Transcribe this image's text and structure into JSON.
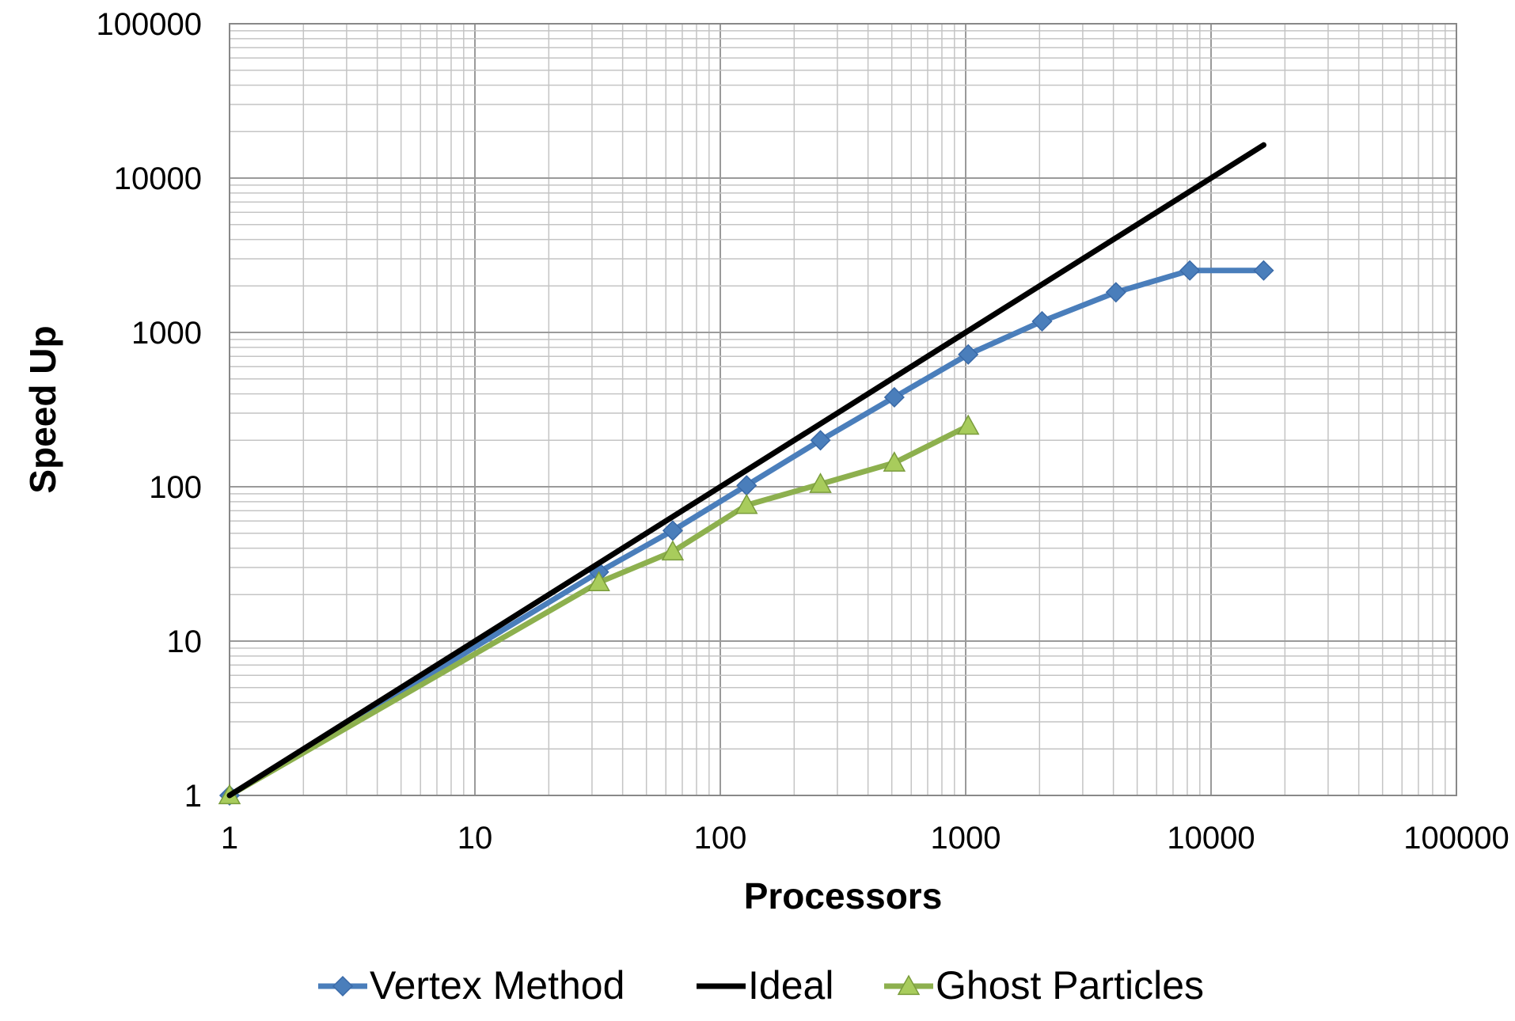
{
  "chart_data": {
    "type": "line",
    "xlabel": "Processors",
    "ylabel": "Speed Up",
    "xscale": "log",
    "yscale": "log",
    "xlim": [
      1,
      100000
    ],
    "ylim": [
      1,
      100000
    ],
    "x_ticks": [
      "1",
      "10",
      "100",
      "1000",
      "10000",
      "100000"
    ],
    "y_ticks": [
      "1",
      "10",
      "100",
      "1000",
      "10000",
      "100000"
    ],
    "grid": "major and minor",
    "legend_position": "bottom",
    "series": [
      {
        "name": "Vertex Method",
        "color": "#4a7ebb",
        "marker": "diamond",
        "x": [
          1,
          32,
          64,
          128,
          256,
          512,
          1024,
          2048,
          4096,
          8192,
          16384
        ],
        "y": [
          1,
          28,
          52,
          102,
          200,
          380,
          720,
          1180,
          1820,
          2520,
          2520
        ]
      },
      {
        "name": "Ideal",
        "color": "#000000",
        "marker": "none",
        "x": [
          1,
          16384
        ],
        "y": [
          1,
          16384
        ]
      },
      {
        "name": "Ghost Particles",
        "color": "#8db04e",
        "marker": "triangle",
        "x": [
          1,
          32,
          64,
          128,
          256,
          512,
          1024
        ],
        "y": [
          1,
          24,
          38,
          76,
          104,
          143,
          248
        ]
      }
    ]
  }
}
